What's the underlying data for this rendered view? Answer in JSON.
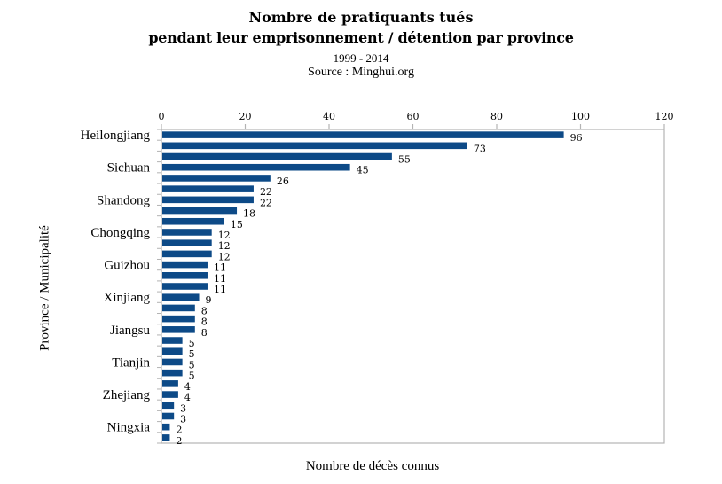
{
  "chart_data": {
    "type": "bar",
    "orientation": "horizontal",
    "title": "Nombre de pratiquants tués",
    "subtitle": "pendant leur emprisonnement / détention par province",
    "period": "1999 - 2014",
    "source": "Source : Minghui.org",
    "xlabel": "Nombre de décès connus",
    "ylabel": "Province / Municipalité",
    "xlim": [
      0,
      120
    ],
    "x_ticks": [
      "0",
      "20",
      "40",
      "60",
      "80",
      "100",
      "120"
    ],
    "x_axis_position": "top",
    "grid": false,
    "bar_color": "#0d4a87",
    "categories": [
      "Heilongjiang",
      "",
      "",
      "Sichuan",
      "",
      "",
      "Shandong",
      "",
      "",
      "Chongqing",
      "",
      "",
      "Guizhou",
      "",
      "",
      "Xinjiang",
      "",
      "",
      "Jiangsu",
      "",
      "",
      "Tianjin",
      "",
      "",
      "Zhejiang",
      "",
      "",
      "Ningxia",
      ""
    ],
    "values": [
      96,
      73,
      55,
      45,
      26,
      22,
      22,
      18,
      15,
      12,
      12,
      12,
      11,
      11,
      11,
      9,
      8,
      8,
      8,
      5,
      5,
      5,
      5,
      4,
      4,
      3,
      3,
      2,
      2
    ]
  }
}
